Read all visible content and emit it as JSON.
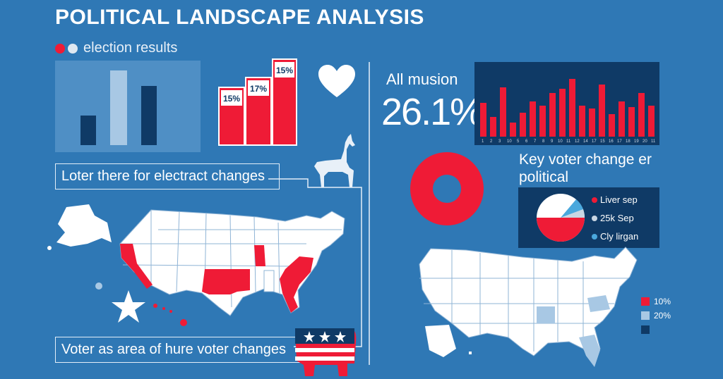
{
  "header": {
    "title": "POLITICAL LANDSCAPE ANALYSIS",
    "legend_label": "election results"
  },
  "bar_labels": [
    "15%",
    "17%",
    "15%"
  ],
  "captions": {
    "top": "Loter there for electract changes",
    "bottom": "Voter as area of hure voter changes"
  },
  "stat": {
    "label": "All musion",
    "value": "26.1%"
  },
  "red_bar_chart": {
    "x_ticks": [
      "1",
      "2",
      "3",
      "10",
      "5",
      "6",
      "7",
      "8",
      "9",
      "10",
      "11",
      "12",
      "14",
      "17",
      "15",
      "16",
      "17",
      "18",
      "19",
      "20",
      "11"
    ]
  },
  "key_voter": {
    "title": "Key voter change er political",
    "legend": [
      {
        "label": "Liver sep",
        "color": "#ef1b36"
      },
      {
        "label": "25k Sep",
        "color": "#c9d6e3"
      },
      {
        "label": "Cly lirgan",
        "color": "#4aa8dd"
      }
    ]
  },
  "map_legend": [
    {
      "label": "10%",
      "color": "#ef1b36"
    },
    {
      "label": "20%",
      "color": "#a8c8e4"
    },
    {
      "label": "",
      "color": "#0f3a66"
    }
  ],
  "colors": {
    "background": "#2f78b5",
    "red": "#ef1b36",
    "navy": "#0f3a66",
    "light_blue": "#a8c8e4"
  },
  "icons": [
    "heart-icon",
    "dog-icon",
    "star-icon",
    "elephant-icon"
  ]
}
